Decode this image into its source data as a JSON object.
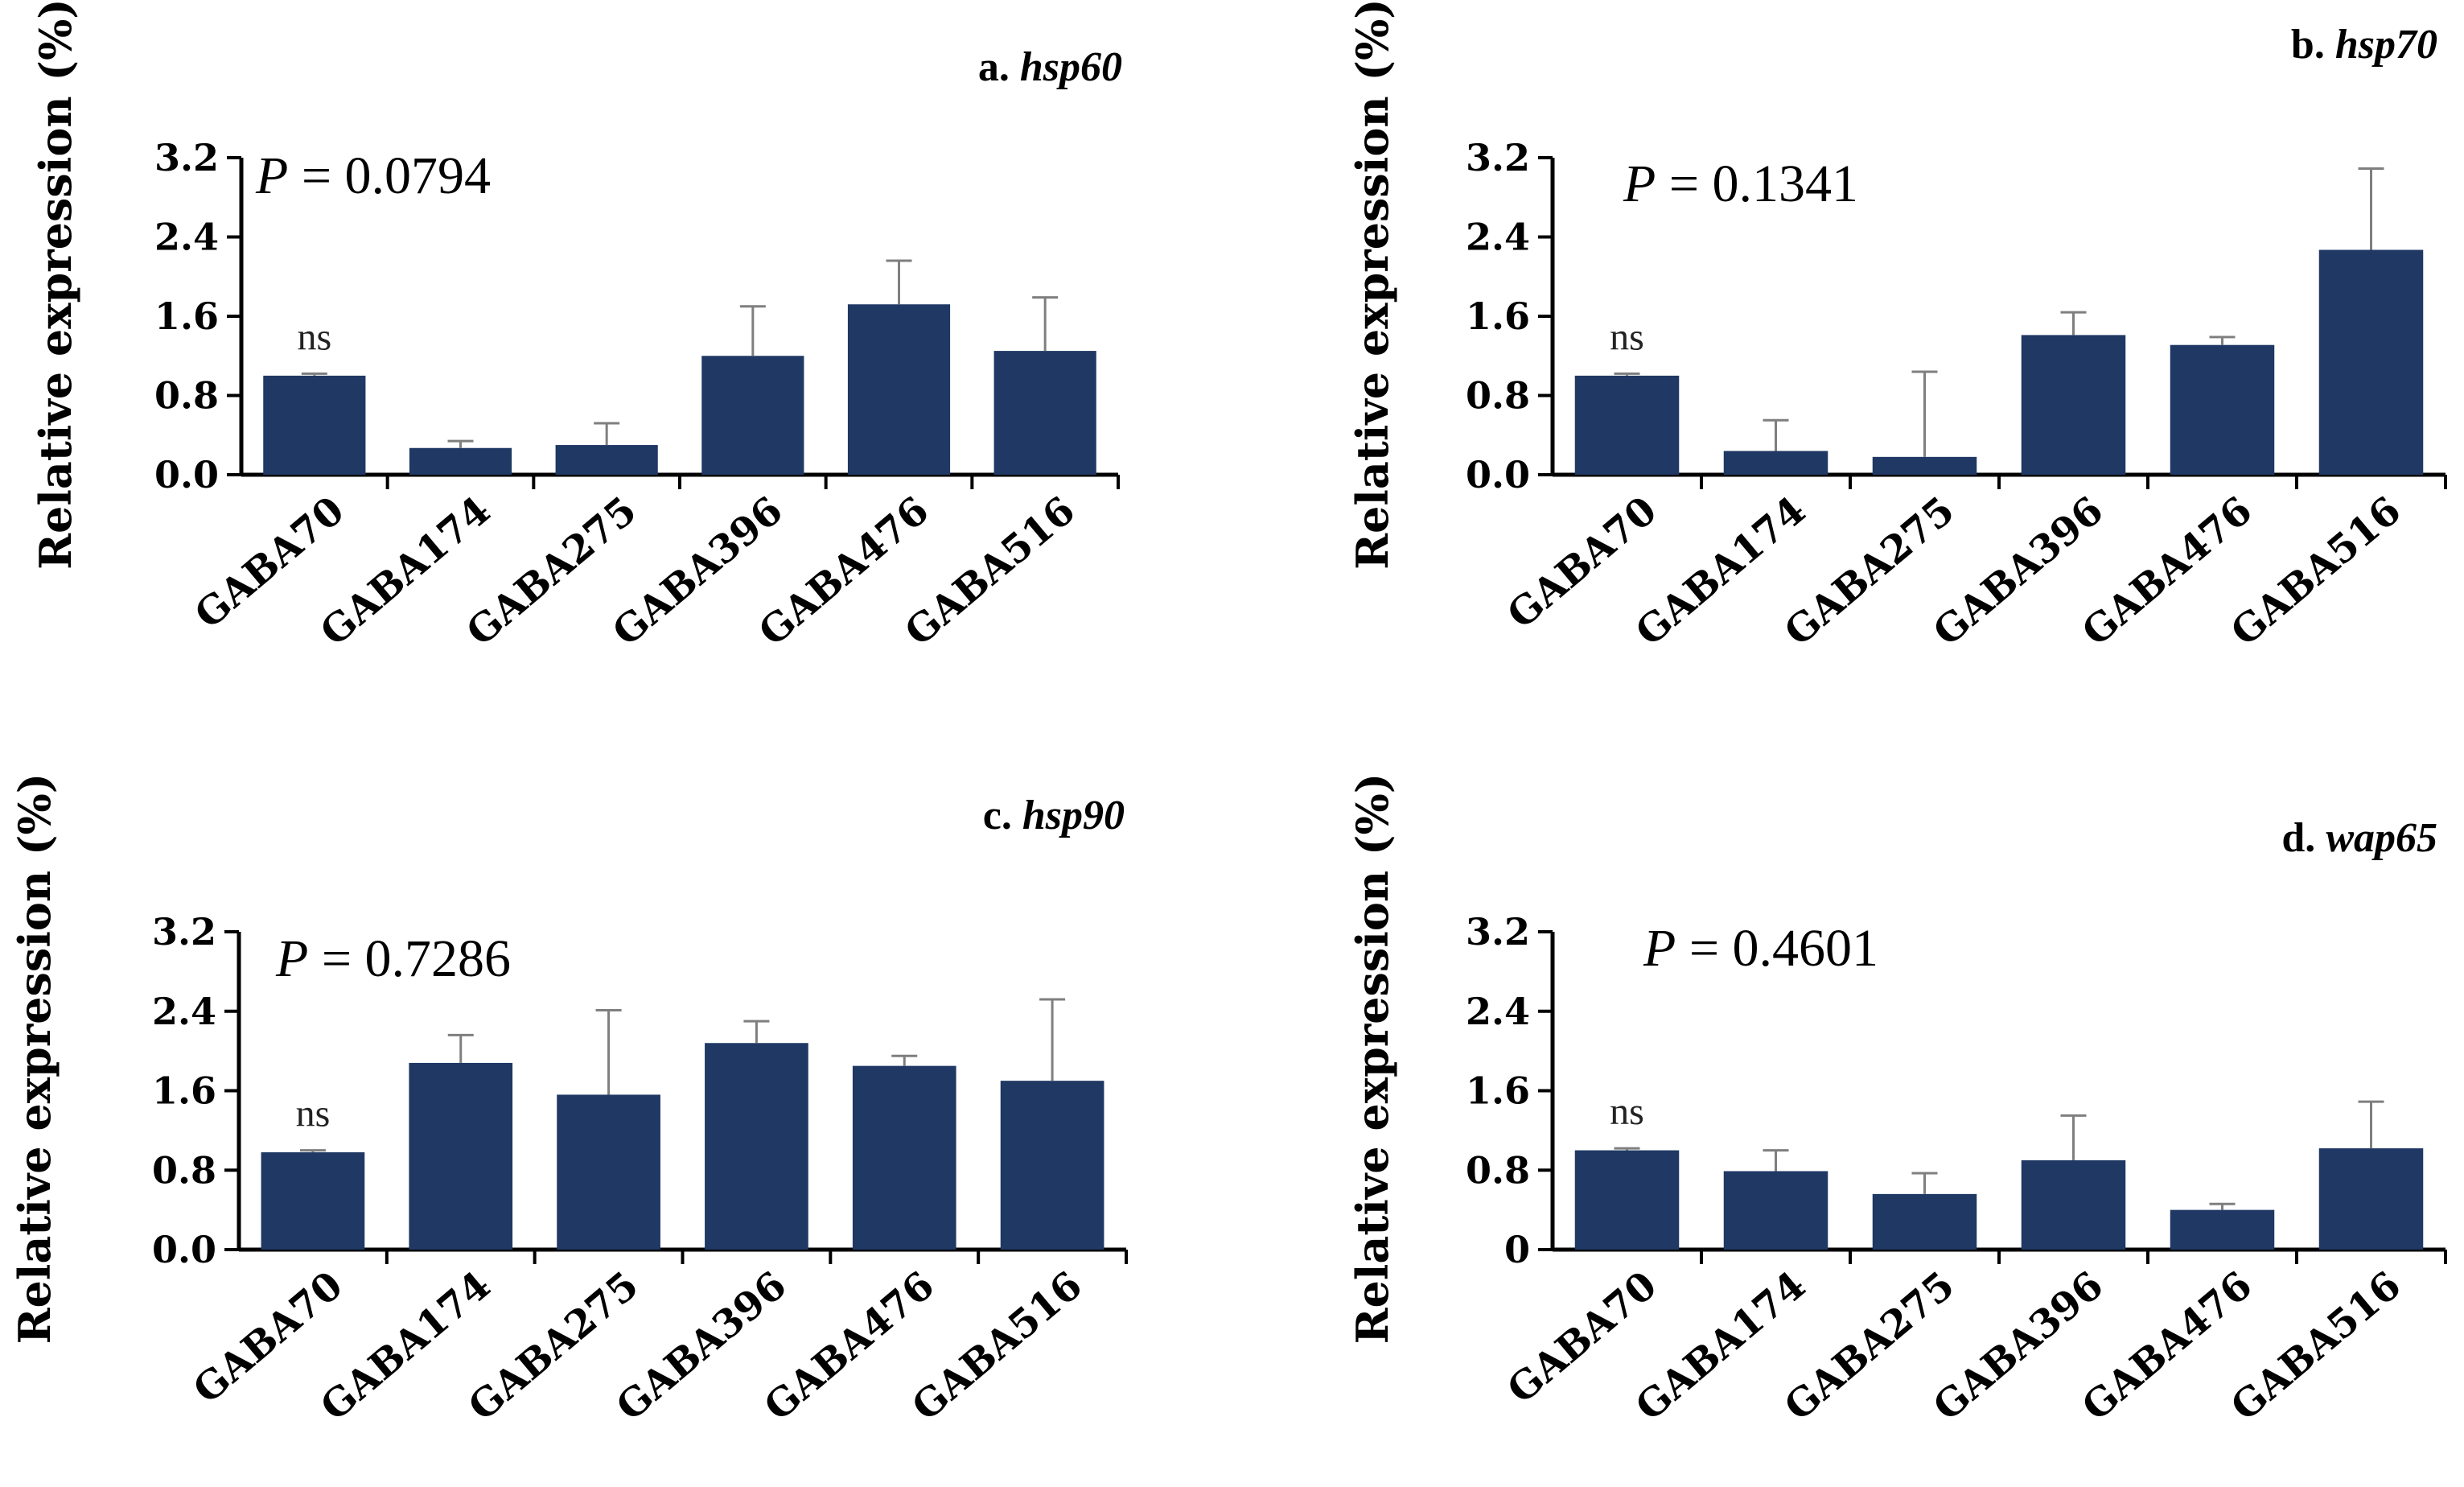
{
  "figure": {
    "bar_color": "#1f3864",
    "axis_color": "#000000",
    "error_color": "#7f7f7f"
  },
  "chart_data": [
    {
      "id": "a",
      "type": "bar",
      "title_prefix": "a.",
      "title_gene": "hsp60",
      "ylabel": "Relative expression (%)",
      "xlabel": "",
      "ylim": [
        0,
        3.2
      ],
      "yticks": [
        "0.0",
        "0.8",
        "1.6",
        "2.4",
        "3.2"
      ],
      "categories": [
        "GABA70",
        "GABA174",
        "GABA275",
        "GABA396",
        "GABA476",
        "GABA516"
      ],
      "values": [
        1.0,
        0.27,
        0.3,
        1.2,
        1.72,
        1.25
      ],
      "errors": [
        0.02,
        0.07,
        0.22,
        0.5,
        0.44,
        0.54
      ],
      "p_value": "= 0.0794",
      "ns_label": "ns"
    },
    {
      "id": "b",
      "type": "bar",
      "title_prefix": "b.",
      "title_gene": "hsp70",
      "ylabel": "Relative expression (%)",
      "xlabel": "",
      "ylim": [
        0,
        3.2
      ],
      "yticks": [
        "0.0",
        "0.8",
        "1.6",
        "2.4",
        "3.2"
      ],
      "categories": [
        "GABA70",
        "GABA174",
        "GABA275",
        "GABA396",
        "GABA476",
        "GABA516"
      ],
      "values": [
        1.0,
        0.24,
        0.18,
        1.41,
        1.31,
        2.27
      ],
      "errors": [
        0.02,
        0.31,
        0.86,
        0.23,
        0.08,
        0.82
      ],
      "p_value": "= 0.1341",
      "ns_label": "ns"
    },
    {
      "id": "c",
      "type": "bar",
      "title_prefix": "c.",
      "title_gene": "hsp90",
      "ylabel": "Relative expression (%)",
      "xlabel": "",
      "ylim": [
        0,
        3.2
      ],
      "yticks": [
        "0.0",
        "0.8",
        "1.6",
        "2.4",
        "3.2"
      ],
      "categories": [
        "GABA70",
        "GABA174",
        "GABA275",
        "GABA396",
        "GABA476",
        "GABA516"
      ],
      "values": [
        0.98,
        1.88,
        1.56,
        2.08,
        1.85,
        1.7
      ],
      "errors": [
        0.02,
        0.28,
        0.85,
        0.22,
        0.1,
        0.82
      ],
      "p_value": "= 0.7286",
      "ns_label": "ns"
    },
    {
      "id": "d",
      "type": "bar",
      "title_prefix": "d.",
      "title_gene": "wap65",
      "ylabel": "Relative expression (%)",
      "xlabel": "",
      "ylim": [
        0,
        3.2
      ],
      "yticks": [
        "0",
        "0.8",
        "1.6",
        "2.4",
        "3.2"
      ],
      "categories": [
        "GABA70",
        "GABA174",
        "GABA275",
        "GABA396",
        "GABA476",
        "GABA516"
      ],
      "values": [
        1.0,
        0.79,
        0.56,
        0.9,
        0.4,
        1.02
      ],
      "errors": [
        0.02,
        0.21,
        0.21,
        0.45,
        0.06,
        0.47
      ],
      "p_value": "= 0.4601",
      "ns_label": "ns"
    }
  ]
}
